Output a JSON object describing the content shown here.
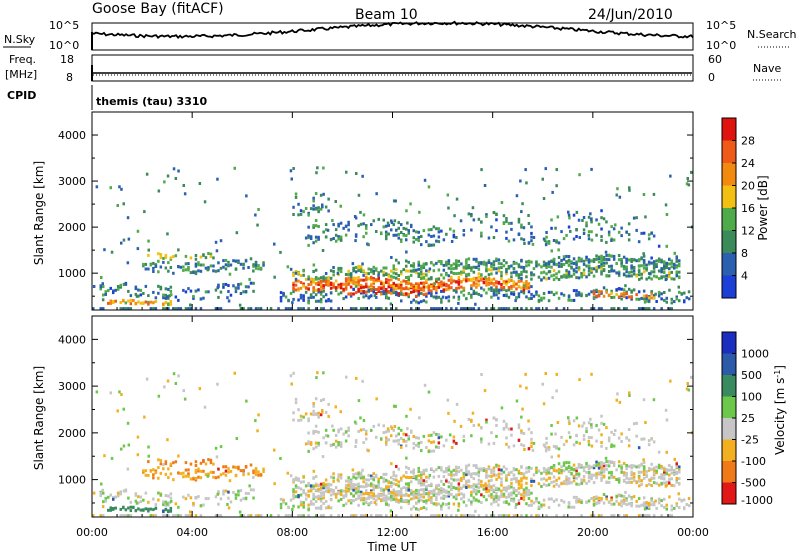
{
  "header": {
    "station": "Goose Bay (fitACF)",
    "beam": "Beam 10",
    "date": "24/Jun/2010"
  },
  "noise_panel": {
    "left_label": "N.Sky",
    "left_ticks": [
      "10^5",
      "10^0"
    ],
    "right_label": "N.Search",
    "right_ticks": [
      "10^5",
      "10^0"
    ]
  },
  "freq_panel": {
    "left_label_1": "Freq.",
    "left_label_2": "[MHz]",
    "left_ticks": [
      "18",
      "8"
    ],
    "right_label": "Nave",
    "right_ticks": [
      "60",
      "0"
    ]
  },
  "cpid": {
    "label": "CPID",
    "value": "themis (tau) 3310"
  },
  "colors": {
    "power_scale": [
      "#1c3fd6",
      "#2b5fb0",
      "#3a8a5a",
      "#4faa4a",
      "#f2c012",
      "#f28a10",
      "#f05a18",
      "#e0140e"
    ],
    "velocity_scale": [
      "#1a2ec0",
      "#2a5aa8",
      "#3a8a60",
      "#6cc84a",
      "#c6c6c6",
      "#f2b020",
      "#f07a18",
      "#e21818"
    ]
  },
  "chart_data": [
    {
      "type": "heatmap",
      "title": "Power",
      "ylabel": "Slant Range [km]",
      "yticks": [
        "1000",
        "2000",
        "3000",
        "4000"
      ],
      "ylim": [
        200,
        4500
      ],
      "colorbar_label": "Power [dB]",
      "colorbar_ticks": [
        "28",
        "24",
        "20",
        "16",
        "12",
        "8",
        "4"
      ],
      "colorbar_range": [
        0,
        32
      ]
    },
    {
      "type": "heatmap",
      "title": "Velocity",
      "ylabel": "Slant Range [km]",
      "yticks": [
        "1000",
        "2000",
        "3000",
        "4000"
      ],
      "ylim": [
        200,
        4500
      ],
      "colorbar_label": "Velocity [m s^-1]",
      "colorbar_ticks": [
        "1000",
        "500",
        "100",
        "25",
        "-25",
        "-100",
        "-500",
        "-1000"
      ],
      "xlabel": "Time UT",
      "xticks": [
        "00:00",
        "04:00",
        "08:00",
        "12:00",
        "16:00",
        "20:00",
        "00:00"
      ],
      "xlim_hours": [
        0,
        24
      ]
    }
  ]
}
